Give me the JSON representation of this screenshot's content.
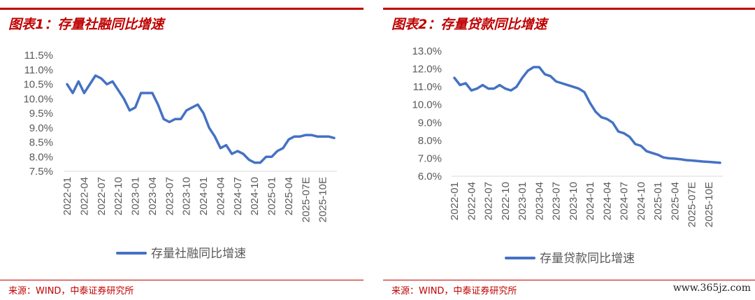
{
  "chart_data": [
    {
      "type": "line",
      "title": "图表1：存量社融同比增速",
      "source": "来源：WIND，中泰证券研究所",
      "x_tick_labels": [
        "2022-01",
        "2022-04",
        "2022-07",
        "2022-10",
        "2023-01",
        "2023-04",
        "2023-07",
        "2023-10",
        "2024-01",
        "2024-04",
        "2024-07",
        "2024-10",
        "2025-01",
        "2025-04",
        "2025-07E",
        "2025-10E"
      ],
      "y_tick_labels": [
        "7.5%",
        "8.0%",
        "8.5%",
        "9.0%",
        "9.5%",
        "10.0%",
        "10.5%",
        "11.0%",
        "11.5%"
      ],
      "ylim": [
        7.5,
        11.5
      ],
      "series": [
        {
          "name": "存量社融同比增速",
          "color": "#4472c4",
          "values": [
            10.5,
            10.2,
            10.6,
            10.2,
            10.5,
            10.8,
            10.7,
            10.5,
            10.6,
            10.3,
            10.0,
            9.6,
            9.7,
            10.2,
            10.2,
            10.2,
            9.8,
            9.3,
            9.2,
            9.3,
            9.3,
            9.6,
            9.7,
            9.8,
            9.5,
            9.0,
            8.7,
            8.3,
            8.4,
            8.1,
            8.2,
            8.1,
            7.9,
            7.8,
            7.8,
            8.0,
            8.0,
            8.2,
            8.3,
            8.6,
            8.7,
            8.7,
            8.75,
            8.75,
            8.7,
            8.7,
            8.7,
            8.65
          ]
        }
      ]
    },
    {
      "type": "line",
      "title": "图表2：存量贷款同比增速",
      "source": "来源：WIND，中泰证券研究所",
      "x_tick_labels": [
        "2022-01",
        "2022-04",
        "2022-07",
        "2022-10",
        "2023-01",
        "2023-04",
        "2023-07",
        "2023-10",
        "2024-01",
        "2024-04",
        "2024-07",
        "2024-10",
        "2025-01",
        "2025-04",
        "2025-07E",
        "2025-10E"
      ],
      "y_tick_labels": [
        "6.0%",
        "7.0%",
        "8.0%",
        "9.0%",
        "10.0%",
        "11.0%",
        "12.0%",
        "13.0%"
      ],
      "ylim": [
        6.0,
        13.0
      ],
      "series": [
        {
          "name": "存量贷款同比增速",
          "color": "#4472c4",
          "values": [
            11.5,
            11.1,
            11.2,
            10.8,
            10.9,
            11.1,
            10.9,
            10.9,
            11.1,
            10.9,
            10.8,
            11.0,
            11.5,
            11.9,
            12.1,
            12.1,
            11.7,
            11.6,
            11.3,
            11.2,
            11.1,
            11.0,
            10.9,
            10.7,
            10.1,
            9.6,
            9.3,
            9.2,
            9.0,
            8.5,
            8.4,
            8.2,
            7.8,
            7.7,
            7.4,
            7.3,
            7.2,
            7.05,
            7.0,
            6.98,
            6.95,
            6.9,
            6.88,
            6.85,
            6.82,
            6.8,
            6.78,
            6.75
          ]
        }
      ]
    }
  ],
  "watermark": "www.365jz.com"
}
